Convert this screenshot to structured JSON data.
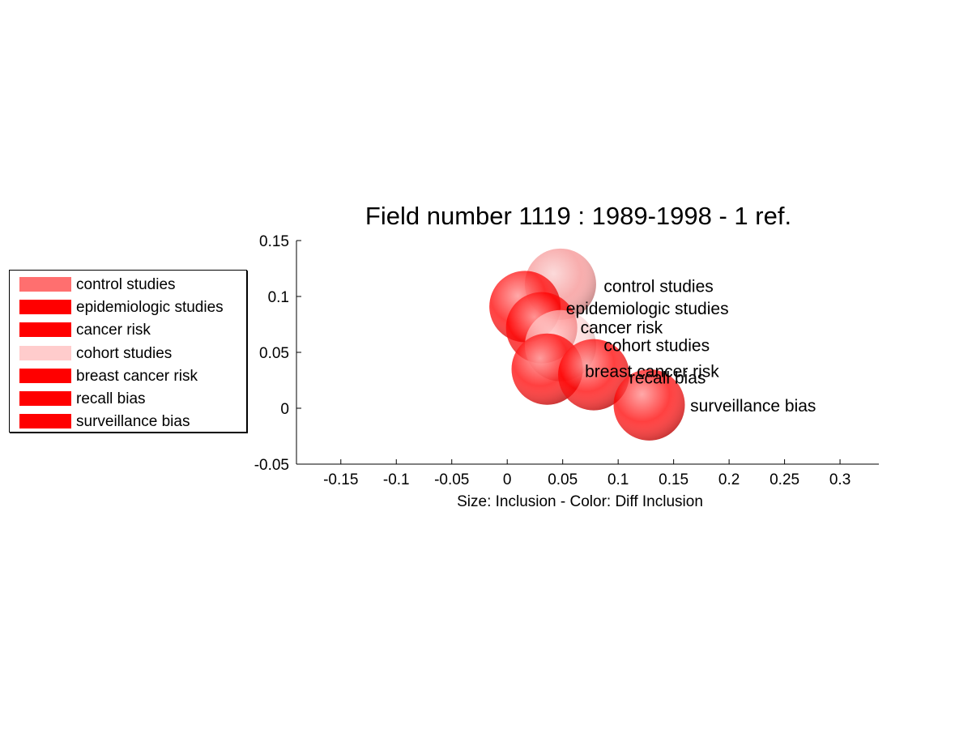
{
  "chart_data": {
    "type": "scatter",
    "title": "Field number 1119 : 1989-1998  - 1 ref.",
    "xlabel": "Size: Inclusion - Color: Diff Inclusion",
    "ylabel": "",
    "xlim": [
      -0.19,
      0.335
    ],
    "ylim": [
      -0.05,
      0.15
    ],
    "xticks": [
      "-0.15",
      "-0.1",
      "-0.05",
      "0",
      "0.05",
      "0.1",
      "0.15",
      "0.2",
      "0.25",
      "0.3"
    ],
    "xtick_values": [
      -0.15,
      -0.1,
      -0.05,
      0,
      0.05,
      0.1,
      0.15,
      0.2,
      0.25,
      0.3
    ],
    "yticks": [
      "0.15",
      "0.1",
      "0.05",
      "0",
      "-0.05"
    ],
    "ytick_values": [
      0.15,
      0.1,
      0.05,
      0,
      -0.05
    ],
    "grid": false,
    "legend_position": "left",
    "points": [
      {
        "label": "control studies",
        "x": 0.048,
        "y": 0.111,
        "size": 1,
        "color": "#f26a6a",
        "opacity": 0.55
      },
      {
        "label": "epidemiologic studies",
        "x": 0.016,
        "y": 0.091,
        "size": 1,
        "color": "#ff0000",
        "opacity": 0.75
      },
      {
        "label": "cancer risk",
        "x": 0.031,
        "y": 0.072,
        "size": 1,
        "color": "#ff0000",
        "opacity": 0.75
      },
      {
        "label": "cohort studies",
        "x": 0.048,
        "y": 0.056,
        "size": 1,
        "color": "#ffcccc",
        "opacity": 0.6
      },
      {
        "label": "breast cancer risk",
        "x": 0.036,
        "y": 0.035,
        "size": 1,
        "color": "#ff0000",
        "opacity": 0.75
      },
      {
        "label": "recall bias",
        "x": 0.078,
        "y": 0.03,
        "size": 1,
        "color": "#ff0000",
        "opacity": 0.75
      },
      {
        "label": "surveillance bias",
        "x": 0.128,
        "y": 0.003,
        "size": 1,
        "color": "#ff0000",
        "opacity": 0.75
      }
    ],
    "annotations": [
      {
        "text": "control studies",
        "x": 0.087,
        "y": 0.109
      },
      {
        "text": "epidemiologic studies",
        "x": 0.053,
        "y": 0.089
      },
      {
        "text": "cancer risk",
        "x": 0.066,
        "y": 0.072
      },
      {
        "text": "cohort studies",
        "x": 0.087,
        "y": 0.056
      },
      {
        "text": "breast cancer risk",
        "x": 0.07,
        "y": 0.033
      },
      {
        "text": "recall bias",
        "x": 0.11,
        "y": 0.027
      },
      {
        "text": "surveillance bias",
        "x": 0.165,
        "y": 0.002
      }
    ]
  },
  "legend": {
    "items": [
      {
        "label": "control studies",
        "color": "#ff6f6f"
      },
      {
        "label": "epidemiologic studies",
        "color": "#ff0000"
      },
      {
        "label": "cancer risk",
        "color": "#ff0000"
      },
      {
        "label": "cohort studies",
        "color": "#ffcccc"
      },
      {
        "label": "breast cancer risk",
        "color": "#ff0000"
      },
      {
        "label": "recall bias",
        "color": "#ff0000"
      },
      {
        "label": "surveillance bias",
        "color": "#ff0000"
      }
    ]
  }
}
